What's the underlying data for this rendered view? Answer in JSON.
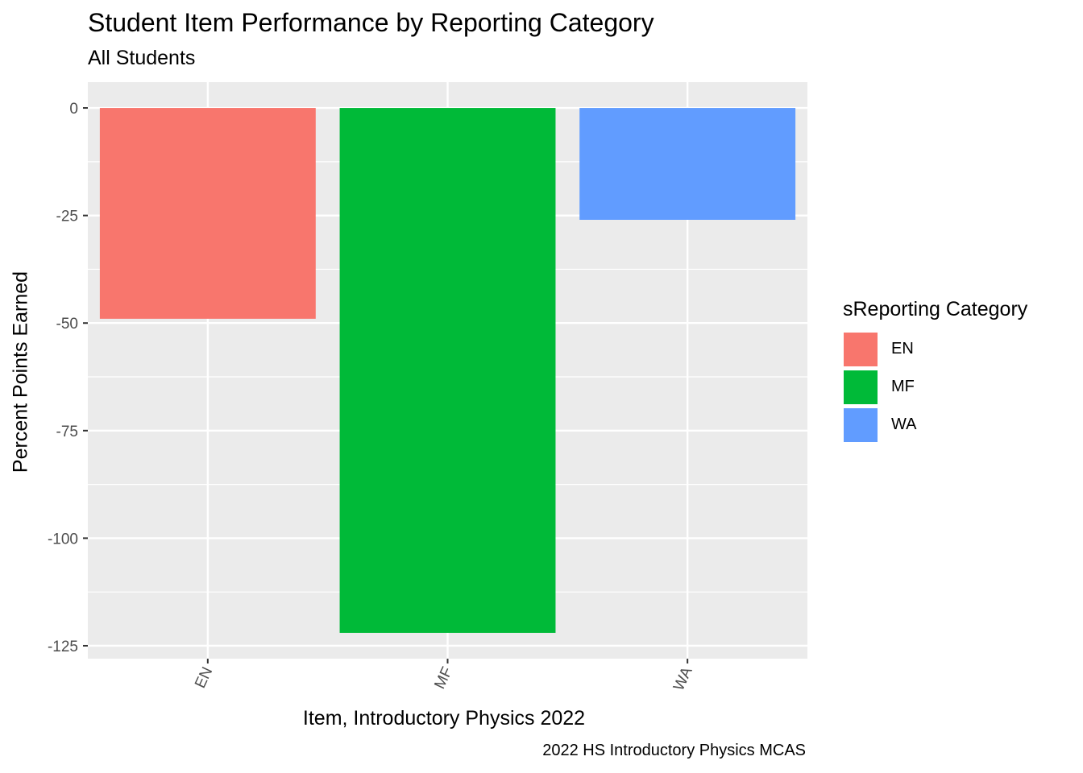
{
  "chart_data": {
    "type": "bar",
    "title": "Student Item Performance by Reporting Category",
    "subtitle": "All Students",
    "xlabel": "Item, Introductory Physics 2022",
    "ylabel": "Percent Points Earned",
    "caption": "2022 HS Introductory Physics MCAS",
    "categories": [
      "EN",
      "MF",
      "WA"
    ],
    "values": [
      -49,
      -122,
      -26
    ],
    "colors": [
      "#F8766D",
      "#00BA38",
      "#619CFF"
    ],
    "ylim": [
      -128,
      6
    ],
    "yticks": [
      0,
      -25,
      -50,
      -75,
      -100,
      -125
    ],
    "ytick_labels": [
      "0",
      "-25",
      "-50",
      "-75",
      "-100",
      "-125"
    ],
    "grid": true,
    "legend": {
      "title": "sReporting Category",
      "position": "right",
      "entries": [
        "EN",
        "MF",
        "WA"
      ]
    }
  }
}
